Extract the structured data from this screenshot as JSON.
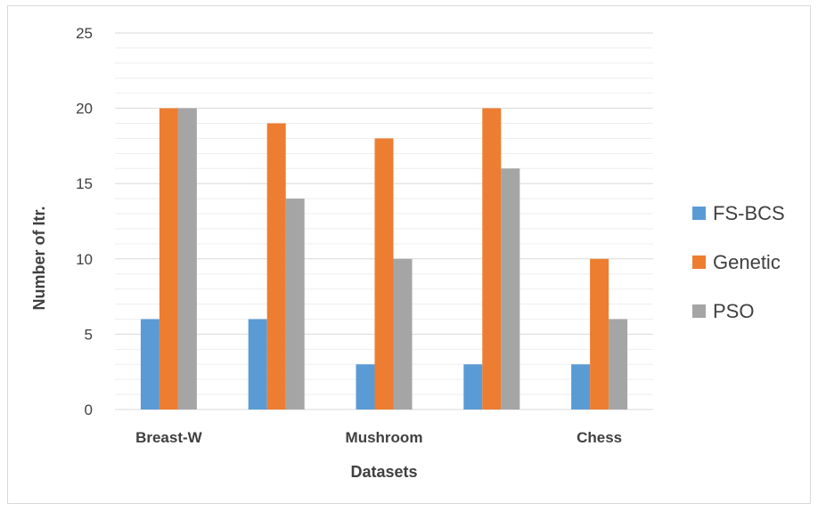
{
  "chart_data": {
    "type": "bar",
    "title": "",
    "xlabel": "Datasets",
    "ylabel": "Number of Itr.",
    "ylim": [
      0,
      25
    ],
    "yticks": [
      0,
      5,
      10,
      15,
      20,
      25
    ],
    "minor_grid_step": 1,
    "grid": true,
    "legend_position": "right",
    "categories": [
      "Breast-W",
      "",
      "Mushroom",
      "",
      "Chess"
    ],
    "series": [
      {
        "name": "FS-BCS",
        "color": "#5b9bd5",
        "values": [
          6,
          6,
          3,
          3,
          3
        ]
      },
      {
        "name": "Genetic",
        "color": "#ed7d31",
        "values": [
          20,
          19,
          18,
          20,
          10
        ]
      },
      {
        "name": "PSO",
        "color": "#a5a5a5",
        "values": [
          20,
          14,
          10,
          16,
          6
        ]
      }
    ]
  }
}
